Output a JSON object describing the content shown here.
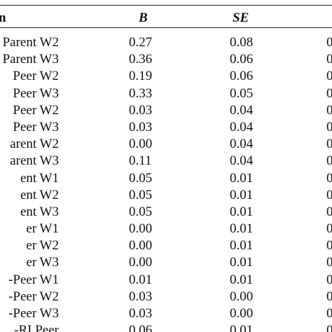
{
  "table": {
    "header": {
      "path": "n",
      "b": "B",
      "se": "SE"
    },
    "rows": [
      {
        "path": "Parent W2",
        "b": "0.27",
        "se": "0.08",
        "last": "0"
      },
      {
        "path": "Parent W3",
        "b": "0.36",
        "se": "0.06",
        "last": "0"
      },
      {
        "path": "Peer W2",
        "b": "0.19",
        "se": "0.06",
        "last": "0"
      },
      {
        "path": "Peer W3",
        "b": "0.33",
        "se": "0.05",
        "last": "0"
      },
      {
        "path": "Peer W2",
        "b": "0.03",
        "se": "0.04",
        "last": "0"
      },
      {
        "path": "Peer W3",
        "b": "0.03",
        "se": "0.04",
        "last": "0"
      },
      {
        "path": "arent W2",
        "b": "0.00",
        "se": "0.04",
        "last": "0"
      },
      {
        "path": "arent W3",
        "b": "0.11",
        "se": "0.04",
        "last": "0"
      },
      {
        "path": "ent W1",
        "b": "0.05",
        "se": "0.01",
        "last": "0"
      },
      {
        "path": "ent W2",
        "b": "0.05",
        "se": "0.01",
        "last": "0"
      },
      {
        "path": "ent W3",
        "b": "0.05",
        "se": "0.01",
        "last": "0"
      },
      {
        "path": "er W1",
        "b": "0.00",
        "se": "0.01",
        "last": "0"
      },
      {
        "path": "er W2",
        "b": "0.00",
        "se": "0.01",
        "last": "0"
      },
      {
        "path": "er W3",
        "b": "0.00",
        "se": "0.01",
        "last": "0"
      },
      {
        "path": "-Peer W1",
        "b": "0.01",
        "se": "0.01",
        "last": "0"
      },
      {
        "path": "-Peer W2",
        "b": "0.03",
        "se": "0.00",
        "last": "0"
      },
      {
        "path": "-Peer W3",
        "b": "0.03",
        "se": "0.00",
        "last": "0"
      },
      {
        "path": "-RI Peer",
        "b": "0.06",
        "se": "0.01",
        "last": "0"
      }
    ]
  }
}
